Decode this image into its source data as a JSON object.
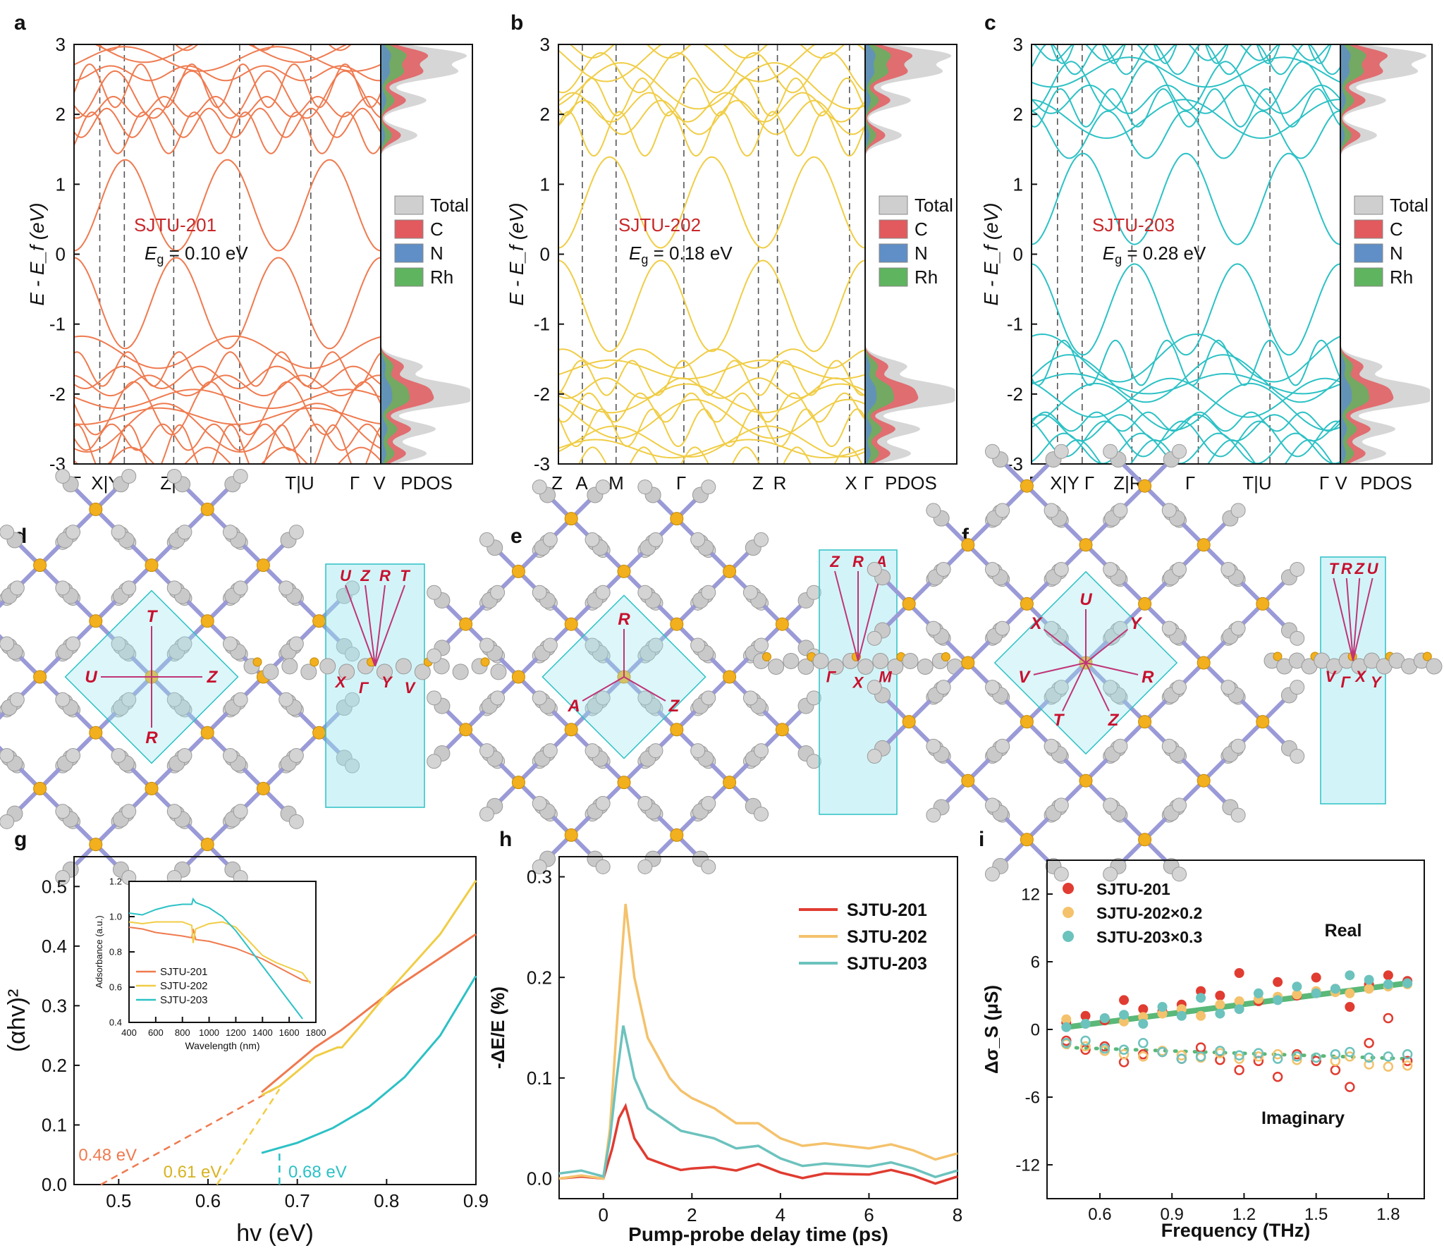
{
  "colors": {
    "orange": "#ef7a4f",
    "yellow": "#f0cd45",
    "teal": "#2cc1c5",
    "c_fill": "#e25a5e",
    "n_fill": "#5f8fc6",
    "rh_fill": "#5fb45f",
    "total_fill": "#cfcfcf",
    "sjtu201": "#e03c31",
    "sjtu202": "#f4c26c",
    "sjtu203": "#6cc2bd",
    "fit": "#5ab878",
    "label_red": "#c8282a",
    "kpath_red": "#c8102e",
    "kpath_line": "#c03478",
    "cell": "#9be6ef"
  },
  "panels": {
    "a": {
      "letter": "a"
    },
    "b": {
      "letter": "b"
    },
    "c": {
      "letter": "c"
    },
    "d": {
      "letter": "d"
    },
    "e": {
      "letter": "e"
    },
    "f": {
      "letter": "f"
    },
    "g": {
      "letter": "g"
    },
    "h": {
      "letter": "h"
    },
    "i": {
      "letter": "i"
    }
  },
  "chart_data": [
    {
      "id": "a",
      "type": "line",
      "subtype": "band_structure_pdos",
      "title": "SJTU-201",
      "gap_label": "= 0.10 eV",
      "gap_value_eV": 0.1,
      "ylabel": "E - E_f (eV)",
      "ylim": [
        -3,
        3
      ],
      "yticks": [
        "3",
        "2",
        "1",
        "0",
        "-1",
        "-2",
        "-3"
      ],
      "kpoints": [
        "Γ",
        "X|Y",
        "Γ",
        "Z|R",
        "Γ",
        "T|U",
        "Γ",
        "V"
      ],
      "kpoint_positions": [
        0,
        0.084,
        0.164,
        0.325,
        0.54,
        0.772,
        1.0,
        1.0
      ],
      "pdos_label": "PDOS",
      "legend": [
        "Total",
        "C",
        "N",
        "Rh"
      ],
      "line_color": "orange"
    },
    {
      "id": "b",
      "type": "line",
      "subtype": "band_structure_pdos",
      "title": "SJTU-202",
      "gap_label": "= 0.18 eV",
      "gap_value_eV": 0.18,
      "ylabel": "E - E_f (eV)",
      "ylim": [
        -3,
        3
      ],
      "yticks": [
        "3",
        "2",
        "1",
        "0",
        "-1",
        "-2",
        "-3"
      ],
      "kpoints": [
        "Z",
        "A",
        "M",
        "Γ",
        "Z",
        "R",
        "X",
        "Γ"
      ],
      "kpoint_positions": [
        0,
        0.078,
        0.188,
        0.409,
        0.652,
        0.714,
        0.949,
        1.0
      ],
      "pdos_label": "PDOS",
      "legend": [
        "Total",
        "C",
        "N",
        "Rh"
      ],
      "line_color": "yellow"
    },
    {
      "id": "c",
      "type": "line",
      "subtype": "band_structure_pdos",
      "title": "SJTU-203",
      "gap_label": "= 0.28 eV",
      "gap_value_eV": 0.28,
      "ylabel": "E - E_f (eV)",
      "ylim": [
        -3,
        3
      ],
      "yticks": [
        "3",
        "2",
        "1",
        "0",
        "-1",
        "-2",
        "-3"
      ],
      "kpoints": [
        "Γ",
        "X|Y",
        "Γ",
        "Z|R",
        "Γ",
        "T|U",
        "Γ",
        "V"
      ],
      "kpoint_positions": [
        0,
        0.084,
        0.164,
        0.325,
        0.54,
        0.772,
        1.0,
        1.0
      ],
      "pdos_label": "PDOS",
      "legend": [
        "Total",
        "C",
        "N",
        "Rh"
      ],
      "line_color": "teal"
    },
    {
      "id": "g",
      "type": "line",
      "subtype": "tauc_plot",
      "xlabel": "hv (eV)",
      "ylabel": "(αhv)²",
      "xlim": [
        0.45,
        0.9
      ],
      "ylim": [
        0,
        0.55
      ],
      "xticks": [
        "0.5",
        "0.6",
        "0.7",
        "0.8",
        "0.9"
      ],
      "yticks": [
        "0.0",
        "0.1",
        "0.2",
        "0.3",
        "0.4",
        "0.5"
      ],
      "series": [
        {
          "name": "SJTU-201",
          "color": "orange",
          "x": [
            0.66,
            0.68,
            0.7,
            0.72,
            0.75,
            0.78,
            0.81,
            0.84,
            0.87,
            0.9
          ],
          "y": [
            0.155,
            0.18,
            0.205,
            0.23,
            0.26,
            0.295,
            0.33,
            0.36,
            0.39,
            0.42
          ],
          "edge_eV": 0.48,
          "edge_label": "0.48 eV"
        },
        {
          "name": "SJTU-202",
          "color": "yellow",
          "x": [
            0.66,
            0.68,
            0.7,
            0.72,
            0.745,
            0.75,
            0.77,
            0.8,
            0.83,
            0.86,
            0.9
          ],
          "y": [
            0.15,
            0.165,
            0.19,
            0.215,
            0.23,
            0.23,
            0.265,
            0.32,
            0.37,
            0.42,
            0.51
          ],
          "edge_eV": 0.61,
          "edge_label": "0.61 eV"
        },
        {
          "name": "SJTU-203",
          "color": "teal",
          "x": [
            0.66,
            0.7,
            0.74,
            0.78,
            0.82,
            0.86,
            0.9
          ],
          "y": [
            0.053,
            0.07,
            0.095,
            0.13,
            0.18,
            0.25,
            0.35
          ],
          "edge_eV": 0.68,
          "edge_label": "0.68 eV"
        }
      ],
      "inset": {
        "xlabel": "Wavelength (nm)",
        "ylabel": "Adsorbance (a.u.)",
        "xlim": [
          400,
          1800
        ],
        "ylim": [
          0.4,
          1.2
        ],
        "xticks": [
          "400",
          "600",
          "800",
          "1000",
          "1200",
          "1400",
          "1600",
          "1800"
        ],
        "yticks": [
          "0.4",
          "0.6",
          "0.8",
          "1.0",
          "1.2"
        ],
        "legend": [
          "SJTU-201",
          "SJTU-202",
          "SJTU-203"
        ],
        "series": [
          {
            "name": "SJTU-201",
            "color": "orange",
            "x": [
              400,
              500,
              600,
              700,
              800,
              870,
              880,
              900,
              1000,
              1100,
              1200,
              1300,
              1400,
              1500,
              1600,
              1700,
              1760
            ],
            "y": [
              0.94,
              0.93,
              0.91,
              0.9,
              0.89,
              0.88,
              0.93,
              0.87,
              0.86,
              0.84,
              0.82,
              0.79,
              0.76,
              0.72,
              0.68,
              0.64,
              0.63
            ]
          },
          {
            "name": "SJTU-202",
            "color": "yellow",
            "x": [
              400,
              500,
              600,
              700,
              800,
              870,
              880,
              900,
              1000,
              1100,
              1200,
              1300,
              1400,
              1500,
              1600,
              1700,
              1760
            ],
            "y": [
              0.97,
              0.96,
              0.97,
              0.97,
              0.97,
              0.95,
              0.85,
              0.93,
              0.96,
              0.97,
              0.94,
              0.86,
              0.78,
              0.74,
              0.71,
              0.68,
              0.62
            ]
          },
          {
            "name": "SJTU-203",
            "color": "teal",
            "x": [
              400,
              500,
              600,
              700,
              800,
              870,
              880,
              900,
              1000,
              1100,
              1200,
              1300,
              1400,
              1500,
              1600,
              1700
            ],
            "y": [
              1.02,
              1.01,
              1.04,
              1.06,
              1.07,
              1.07,
              1.1,
              1.08,
              1.05,
              1.0,
              0.92,
              0.82,
              0.72,
              0.62,
              0.52,
              0.42
            ]
          }
        ]
      }
    },
    {
      "id": "h",
      "type": "line",
      "subtype": "time_resolved",
      "xlabel": "Pump-probe delay time (ps)",
      "ylabel": "-ΔE/E (%)",
      "xlim": [
        -1,
        8
      ],
      "ylim": [
        -0.02,
        0.32
      ],
      "xticks": [
        "0",
        "2",
        "4",
        "6",
        "8"
      ],
      "yticks": [
        "0.0",
        "0.1",
        "0.2",
        "0.3"
      ],
      "series": [
        {
          "name": "SJTU-201",
          "color": "sjtu201",
          "x": [
            -1,
            -0.5,
            0,
            0.2,
            0.35,
            0.5,
            0.7,
            1.0,
            1.5,
            2,
            3,
            4,
            5,
            6,
            7,
            8
          ],
          "y": [
            0.0,
            0.002,
            0.0,
            0.03,
            0.06,
            0.072,
            0.04,
            0.02,
            0.012,
            0.01,
            0.008,
            0.006,
            0.005,
            0.004,
            0.003,
            0.002
          ]
        },
        {
          "name": "SJTU-202",
          "color": "sjtu202",
          "x": [
            -1,
            -0.5,
            0,
            0.15,
            0.3,
            0.5,
            0.7,
            1.0,
            1.5,
            2,
            3,
            4,
            5,
            6,
            7,
            8
          ],
          "y": [
            0.0,
            0.003,
            0.0,
            0.05,
            0.15,
            0.273,
            0.2,
            0.14,
            0.1,
            0.08,
            0.055,
            0.04,
            0.035,
            0.03,
            0.028,
            0.025
          ]
        },
        {
          "name": "SJTU-203",
          "color": "sjtu203",
          "x": [
            -1,
            -0.5,
            0,
            0.15,
            0.3,
            0.45,
            0.7,
            1.0,
            1.5,
            2,
            3,
            4,
            5,
            6,
            7,
            8
          ],
          "y": [
            0.005,
            0.008,
            0.002,
            0.04,
            0.1,
            0.152,
            0.1,
            0.07,
            0.055,
            0.045,
            0.03,
            0.02,
            0.015,
            0.012,
            0.01,
            0.008
          ]
        }
      ]
    },
    {
      "id": "i",
      "type": "scatter",
      "subtype": "thz_conductivity",
      "xlabel": "Frequency (THz)",
      "ylabel": "Δσ_S (μS)",
      "xlim": [
        0.38,
        1.95
      ],
      "ylim": [
        -15,
        15
      ],
      "xticks": [
        "0.6",
        "0.9",
        "1.2",
        "1.5",
        "1.8"
      ],
      "yticks": [
        "12",
        "6",
        "0",
        "-6",
        "-12"
      ],
      "annotations": {
        "real": "Real",
        "imaginary": "Imaginary"
      },
      "fit_real": {
        "x": [
          0.46,
          1.88
        ],
        "y": [
          0.2,
          4.1
        ]
      },
      "fit_imag": {
        "x": [
          0.46,
          1.88
        ],
        "y": [
          -1.6,
          -2.6
        ]
      },
      "frequencies": [
        0.46,
        0.54,
        0.62,
        0.7,
        0.78,
        0.86,
        0.94,
        1.02,
        1.1,
        1.18,
        1.26,
        1.34,
        1.42,
        1.5,
        1.58,
        1.64,
        1.72,
        1.8,
        1.88
      ],
      "series": [
        {
          "name": "SJTU-201",
          "color": "sjtu201",
          "real": [
            0.6,
            1.2,
            0.8,
            2.6,
            1.8,
            1.6,
            2.2,
            3.4,
            3.0,
            5.0,
            2.5,
            4.2,
            3.0,
            4.6,
            3.6,
            2.0,
            4.0,
            4.8,
            4.3
          ],
          "imag": [
            -1.0,
            -1.8,
            -1.5,
            -2.9,
            -2.2,
            -2.0,
            -2.6,
            -1.6,
            -2.7,
            -3.6,
            -2.8,
            -4.2,
            -2.2,
            -2.8,
            -3.6,
            -5.1,
            -1.2,
            1.0,
            -2.8
          ]
        },
        {
          "name": "SJTU-202×0.2",
          "color": "sjtu202",
          "real": [
            0.9,
            0.5,
            1.0,
            0.7,
            1.1,
            1.4,
            1.8,
            1.2,
            2.2,
            2.5,
            2.7,
            2.9,
            3.1,
            3.4,
            3.3,
            3.2,
            3.6,
            3.8,
            4.0
          ],
          "imag": [
            -1.3,
            -1.5,
            -1.9,
            -2.2,
            -2.4,
            -1.9,
            -2.3,
            -2.5,
            -2.1,
            -2.6,
            -2.4,
            -2.2,
            -2.7,
            -2.5,
            -2.8,
            -2.4,
            -3.1,
            -3.3,
            -3.2
          ]
        },
        {
          "name": "SJTU-203×0.3",
          "color": "sjtu203",
          "real": [
            0.2,
            0.5,
            1.0,
            1.3,
            0.5,
            2.0,
            1.2,
            2.8,
            1.4,
            1.8,
            3.2,
            2.6,
            3.8,
            3.2,
            3.6,
            4.8,
            4.4,
            4.0,
            4.1
          ],
          "imag": [
            -1.2,
            -1.0,
            -1.7,
            -1.8,
            -1.2,
            -2.0,
            -2.6,
            -2.4,
            -1.9,
            -2.3,
            -2.1,
            -2.6,
            -2.4,
            -2.5,
            -2.2,
            -2.0,
            -2.5,
            -2.4,
            -2.2
          ]
        }
      ]
    }
  ],
  "structures": {
    "d": {
      "ref_path_labels": [
        "T",
        "Z",
        "R",
        "U"
      ],
      "cell_path_labels": [
        "U",
        "Z",
        "R",
        "T",
        "X",
        "Γ",
        "Y",
        "V"
      ]
    },
    "e": {
      "ref_path_labels": [
        "R",
        "Z",
        "A"
      ],
      "cell_path_labels": [
        "Z",
        "R",
        "A",
        "Γ",
        "X",
        "M"
      ]
    },
    "f": {
      "ref_path_labels": [
        "U",
        "Y",
        "R",
        "Z",
        "T",
        "V",
        "X"
      ],
      "cell_path_labels": [
        "T",
        "R",
        "Z",
        "U",
        "V",
        "Γ",
        "X",
        "Y"
      ]
    }
  }
}
